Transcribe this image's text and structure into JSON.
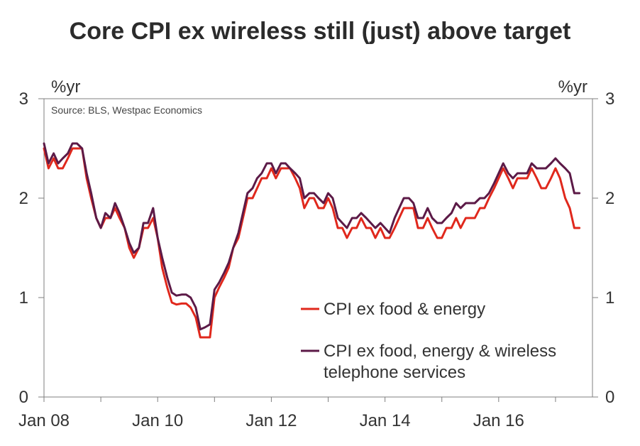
{
  "chart_data": {
    "type": "line",
    "title": "Core CPI ex wireless still (just) above target",
    "unit_left": "%yr",
    "unit_right": "%yr",
    "source": "Source: BLS, Westpac Economics",
    "ylim": [
      0,
      3
    ],
    "y_ticks": [
      "0",
      "1",
      "2",
      "3"
    ],
    "x_range": [
      2008.0,
      2017.65
    ],
    "x_ticks": [
      {
        "label": "Jan 08",
        "value": 2008
      },
      {
        "label": "Jan 10",
        "value": 2010
      },
      {
        "label": "Jan 12",
        "value": 2012
      },
      {
        "label": "Jan 14",
        "value": 2014
      },
      {
        "label": "Jan 16",
        "value": 2016
      }
    ],
    "series": [
      {
        "name": "CPI ex food & energy",
        "color": "#e0281c",
        "points": [
          [
            2008.0,
            2.5
          ],
          [
            2008.08,
            2.3
          ],
          [
            2008.17,
            2.4
          ],
          [
            2008.25,
            2.3
          ],
          [
            2008.33,
            2.3
          ],
          [
            2008.42,
            2.4
          ],
          [
            2008.5,
            2.5
          ],
          [
            2008.58,
            2.5
          ],
          [
            2008.67,
            2.5
          ],
          [
            2008.75,
            2.2
          ],
          [
            2008.83,
            2.0
          ],
          [
            2008.92,
            1.8
          ],
          [
            2009.0,
            1.7
          ],
          [
            2009.08,
            1.8
          ],
          [
            2009.17,
            1.8
          ],
          [
            2009.25,
            1.9
          ],
          [
            2009.33,
            1.8
          ],
          [
            2009.42,
            1.7
          ],
          [
            2009.5,
            1.5
          ],
          [
            2009.58,
            1.4
          ],
          [
            2009.67,
            1.5
          ],
          [
            2009.75,
            1.7
          ],
          [
            2009.83,
            1.7
          ],
          [
            2009.92,
            1.8
          ],
          [
            2010.0,
            1.6
          ],
          [
            2010.08,
            1.3
          ],
          [
            2010.17,
            1.1
          ],
          [
            2010.25,
            0.95
          ],
          [
            2010.33,
            0.93
          ],
          [
            2010.42,
            0.94
          ],
          [
            2010.5,
            0.94
          ],
          [
            2010.58,
            0.9
          ],
          [
            2010.67,
            0.8
          ],
          [
            2010.75,
            0.6
          ],
          [
            2010.83,
            0.6
          ],
          [
            2010.92,
            0.6
          ],
          [
            2011.0,
            1.0
          ],
          [
            2011.08,
            1.1
          ],
          [
            2011.17,
            1.2
          ],
          [
            2011.25,
            1.3
          ],
          [
            2011.33,
            1.5
          ],
          [
            2011.42,
            1.6
          ],
          [
            2011.5,
            1.8
          ],
          [
            2011.58,
            2.0
          ],
          [
            2011.67,
            2.0
          ],
          [
            2011.75,
            2.1
          ],
          [
            2011.83,
            2.2
          ],
          [
            2011.92,
            2.2
          ],
          [
            2012.0,
            2.3
          ],
          [
            2012.08,
            2.2
          ],
          [
            2012.17,
            2.3
          ],
          [
            2012.25,
            2.3
          ],
          [
            2012.33,
            2.3
          ],
          [
            2012.42,
            2.2
          ],
          [
            2012.5,
            2.1
          ],
          [
            2012.58,
            1.9
          ],
          [
            2012.67,
            2.0
          ],
          [
            2012.75,
            2.0
          ],
          [
            2012.83,
            1.9
          ],
          [
            2012.92,
            1.9
          ],
          [
            2013.0,
            2.0
          ],
          [
            2013.08,
            1.9
          ],
          [
            2013.17,
            1.7
          ],
          [
            2013.25,
            1.7
          ],
          [
            2013.33,
            1.6
          ],
          [
            2013.42,
            1.7
          ],
          [
            2013.5,
            1.7
          ],
          [
            2013.58,
            1.8
          ],
          [
            2013.67,
            1.7
          ],
          [
            2013.75,
            1.7
          ],
          [
            2013.83,
            1.6
          ],
          [
            2013.92,
            1.7
          ],
          [
            2014.0,
            1.6
          ],
          [
            2014.08,
            1.6
          ],
          [
            2014.17,
            1.7
          ],
          [
            2014.25,
            1.8
          ],
          [
            2014.33,
            1.9
          ],
          [
            2014.42,
            1.9
          ],
          [
            2014.5,
            1.9
          ],
          [
            2014.58,
            1.7
          ],
          [
            2014.67,
            1.7
          ],
          [
            2014.75,
            1.8
          ],
          [
            2014.83,
            1.7
          ],
          [
            2014.92,
            1.6
          ],
          [
            2015.0,
            1.6
          ],
          [
            2015.08,
            1.7
          ],
          [
            2015.17,
            1.7
          ],
          [
            2015.25,
            1.8
          ],
          [
            2015.33,
            1.7
          ],
          [
            2015.42,
            1.8
          ],
          [
            2015.5,
            1.8
          ],
          [
            2015.58,
            1.8
          ],
          [
            2015.67,
            1.9
          ],
          [
            2015.75,
            1.9
          ],
          [
            2015.83,
            2.0
          ],
          [
            2015.92,
            2.1
          ],
          [
            2016.0,
            2.2
          ],
          [
            2016.08,
            2.3
          ],
          [
            2016.17,
            2.2
          ],
          [
            2016.25,
            2.1
          ],
          [
            2016.33,
            2.2
          ],
          [
            2016.42,
            2.2
          ],
          [
            2016.5,
            2.2
          ],
          [
            2016.58,
            2.3
          ],
          [
            2016.67,
            2.2
          ],
          [
            2016.75,
            2.1
          ],
          [
            2016.83,
            2.1
          ],
          [
            2016.92,
            2.2
          ],
          [
            2017.0,
            2.3
          ],
          [
            2017.08,
            2.2
          ],
          [
            2017.17,
            2.0
          ],
          [
            2017.25,
            1.9
          ],
          [
            2017.33,
            1.7
          ],
          [
            2017.42,
            1.7
          ]
        ]
      },
      {
        "name": "CPI ex food, energy & wireless telephone services",
        "color": "#5c1a47",
        "points": [
          [
            2008.0,
            2.55
          ],
          [
            2008.08,
            2.35
          ],
          [
            2008.17,
            2.45
          ],
          [
            2008.25,
            2.35
          ],
          [
            2008.33,
            2.4
          ],
          [
            2008.42,
            2.45
          ],
          [
            2008.5,
            2.55
          ],
          [
            2008.58,
            2.55
          ],
          [
            2008.67,
            2.5
          ],
          [
            2008.75,
            2.25
          ],
          [
            2008.83,
            2.05
          ],
          [
            2008.92,
            1.8
          ],
          [
            2009.0,
            1.7
          ],
          [
            2009.08,
            1.85
          ],
          [
            2009.17,
            1.8
          ],
          [
            2009.25,
            1.95
          ],
          [
            2009.33,
            1.85
          ],
          [
            2009.42,
            1.7
          ],
          [
            2009.5,
            1.55
          ],
          [
            2009.58,
            1.45
          ],
          [
            2009.67,
            1.5
          ],
          [
            2009.75,
            1.75
          ],
          [
            2009.83,
            1.75
          ],
          [
            2009.92,
            1.9
          ],
          [
            2010.0,
            1.6
          ],
          [
            2010.08,
            1.4
          ],
          [
            2010.17,
            1.2
          ],
          [
            2010.25,
            1.05
          ],
          [
            2010.33,
            1.02
          ],
          [
            2010.42,
            1.03
          ],
          [
            2010.5,
            1.03
          ],
          [
            2010.58,
            1.0
          ],
          [
            2010.67,
            0.9
          ],
          [
            2010.75,
            0.68
          ],
          [
            2010.83,
            0.7
          ],
          [
            2010.92,
            0.73
          ],
          [
            2011.0,
            1.08
          ],
          [
            2011.08,
            1.15
          ],
          [
            2011.17,
            1.25
          ],
          [
            2011.25,
            1.35
          ],
          [
            2011.33,
            1.5
          ],
          [
            2011.42,
            1.65
          ],
          [
            2011.5,
            1.85
          ],
          [
            2011.58,
            2.05
          ],
          [
            2011.67,
            2.1
          ],
          [
            2011.75,
            2.2
          ],
          [
            2011.83,
            2.25
          ],
          [
            2011.92,
            2.35
          ],
          [
            2012.0,
            2.35
          ],
          [
            2012.08,
            2.25
          ],
          [
            2012.17,
            2.35
          ],
          [
            2012.25,
            2.35
          ],
          [
            2012.33,
            2.3
          ],
          [
            2012.42,
            2.25
          ],
          [
            2012.5,
            2.2
          ],
          [
            2012.58,
            2.0
          ],
          [
            2012.67,
            2.05
          ],
          [
            2012.75,
            2.05
          ],
          [
            2012.83,
            2.0
          ],
          [
            2012.92,
            1.95
          ],
          [
            2013.0,
            2.05
          ],
          [
            2013.08,
            2.0
          ],
          [
            2013.17,
            1.8
          ],
          [
            2013.25,
            1.75
          ],
          [
            2013.33,
            1.7
          ],
          [
            2013.42,
            1.8
          ],
          [
            2013.5,
            1.8
          ],
          [
            2013.58,
            1.85
          ],
          [
            2013.67,
            1.8
          ],
          [
            2013.75,
            1.75
          ],
          [
            2013.83,
            1.7
          ],
          [
            2013.92,
            1.75
          ],
          [
            2014.0,
            1.7
          ],
          [
            2014.08,
            1.65
          ],
          [
            2014.17,
            1.8
          ],
          [
            2014.25,
            1.9
          ],
          [
            2014.33,
            2.0
          ],
          [
            2014.42,
            2.0
          ],
          [
            2014.5,
            1.95
          ],
          [
            2014.58,
            1.8
          ],
          [
            2014.67,
            1.8
          ],
          [
            2014.75,
            1.9
          ],
          [
            2014.83,
            1.8
          ],
          [
            2014.92,
            1.75
          ],
          [
            2015.0,
            1.75
          ],
          [
            2015.08,
            1.8
          ],
          [
            2015.17,
            1.85
          ],
          [
            2015.25,
            1.95
          ],
          [
            2015.33,
            1.9
          ],
          [
            2015.42,
            1.95
          ],
          [
            2015.5,
            1.95
          ],
          [
            2015.58,
            1.95
          ],
          [
            2015.67,
            2.0
          ],
          [
            2015.75,
            2.0
          ],
          [
            2015.83,
            2.05
          ],
          [
            2015.92,
            2.15
          ],
          [
            2016.0,
            2.25
          ],
          [
            2016.08,
            2.35
          ],
          [
            2016.17,
            2.25
          ],
          [
            2016.25,
            2.2
          ],
          [
            2016.33,
            2.25
          ],
          [
            2016.42,
            2.25
          ],
          [
            2016.5,
            2.25
          ],
          [
            2016.58,
            2.35
          ],
          [
            2016.67,
            2.3
          ],
          [
            2016.75,
            2.3
          ],
          [
            2016.83,
            2.3
          ],
          [
            2016.92,
            2.35
          ],
          [
            2017.0,
            2.4
          ],
          [
            2017.08,
            2.35
          ],
          [
            2017.17,
            2.3
          ],
          [
            2017.25,
            2.25
          ],
          [
            2017.33,
            2.05
          ],
          [
            2017.42,
            2.05
          ]
        ]
      }
    ],
    "legend": [
      {
        "lines": [
          "CPI ex food & energy"
        ],
        "color": "#e0281c"
      },
      {
        "lines": [
          "CPI ex food, energy & wireless",
          "telephone services"
        ],
        "color": "#5c1a47"
      }
    ]
  }
}
